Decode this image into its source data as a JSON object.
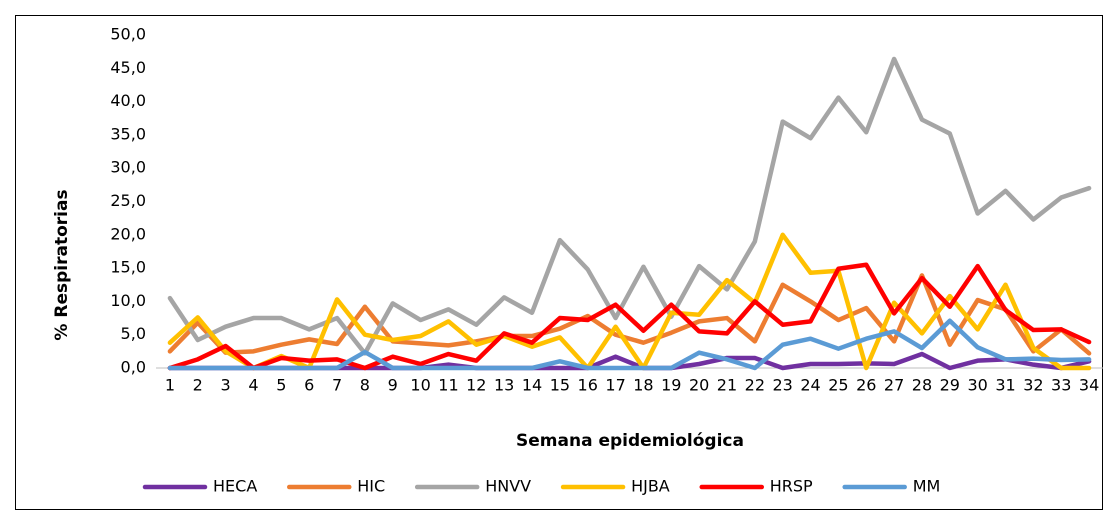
{
  "chart_data": {
    "type": "line",
    "y_label": "% Respiratorias",
    "x_label": "Semana epidemiológica",
    "categories": [
      "1",
      "2",
      "3",
      "4",
      "5",
      "6",
      "7",
      "8",
      "9",
      "10",
      "11",
      "12",
      "13",
      "14",
      "15",
      "16",
      "17",
      "18",
      "19",
      "20",
      "21",
      "22",
      "23",
      "24",
      "25",
      "26",
      "27",
      "28",
      "29",
      "30",
      "31",
      "32",
      "33",
      "34"
    ],
    "ylim": [
      0,
      50
    ],
    "yticks": [
      {
        "value": 0,
        "label": "0,0"
      },
      {
        "value": 5,
        "label": "5,0"
      },
      {
        "value": 10,
        "label": "10,0"
      },
      {
        "value": 15,
        "label": "15,0"
      },
      {
        "value": 20,
        "label": "20,0"
      },
      {
        "value": 25,
        "label": "25,0"
      },
      {
        "value": 30,
        "label": "30,0"
      },
      {
        "value": 35,
        "label": "35,0"
      },
      {
        "value": 40,
        "label": "40,0"
      },
      {
        "value": 45,
        "label": "45,0"
      },
      {
        "value": 50,
        "label": "50,0"
      }
    ],
    "grid": false,
    "series": [
      {
        "name": "HECA",
        "color": "#7030a0",
        "values": [
          0,
          0,
          0,
          0,
          0,
          0,
          0,
          0,
          0,
          0,
          0.5,
          0,
          0,
          0,
          0,
          0,
          1.7,
          0,
          0,
          0.6,
          1.5,
          1.5,
          0,
          0.6,
          0.6,
          0.7,
          0.6,
          2.1,
          0,
          1.1,
          1.3,
          0.5,
          0,
          1.0
        ]
      },
      {
        "name": "HIC",
        "color": "#ed7d31",
        "values": [
          2.5,
          6.8,
          2.3,
          2.5,
          3.5,
          4.3,
          3.6,
          9.2,
          4.0,
          3.7,
          3.4,
          4.0,
          4.8,
          4.8,
          5.9,
          7.8,
          5.0,
          3.8,
          5.3,
          7.0,
          7.5,
          4.0,
          12.5,
          10.0,
          7.2,
          9.0,
          4.0,
          13.9,
          3.5,
          10.2,
          8.8,
          2.5,
          5.8,
          2.2
        ]
      },
      {
        "name": "HNVV",
        "color": "#a5a5a5",
        "values": [
          10.5,
          4.2,
          6.2,
          7.5,
          7.5,
          5.8,
          7.5,
          2.2,
          9.7,
          7.2,
          8.8,
          6.5,
          10.6,
          8.3,
          19.2,
          14.8,
          7.5,
          15.2,
          7.7,
          15.3,
          11.8,
          19.0,
          37.0,
          34.5,
          40.6,
          35.4,
          46.4,
          37.3,
          35.2,
          23.2,
          26.6,
          22.3,
          25.6,
          27.0
        ]
      },
      {
        "name": "HJBA",
        "color": "#ffc000",
        "values": [
          3.8,
          7.6,
          2.5,
          0,
          1.8,
          0,
          10.3,
          5.0,
          4.2,
          4.8,
          7.0,
          3.5,
          4.8,
          3.2,
          4.6,
          0,
          6.2,
          0,
          8.3,
          8.0,
          13.2,
          9.8,
          20.0,
          14.3,
          14.6,
          0,
          9.8,
          5.2,
          10.8,
          5.8,
          12.5,
          3.0,
          0,
          0
        ]
      },
      {
        "name": "HRSP",
        "color": "#ff0000",
        "values": [
          0,
          1.3,
          3.3,
          0,
          1.5,
          1.1,
          1.3,
          0,
          1.7,
          0.6,
          2.1,
          1.1,
          5.2,
          3.8,
          7.5,
          7.2,
          9.5,
          5.6,
          9.5,
          5.5,
          5.2,
          10.0,
          6.5,
          7.0,
          14.9,
          15.5,
          8.2,
          13.5,
          9.2,
          15.3,
          8.7,
          5.7,
          5.8,
          3.9
        ]
      },
      {
        "name": "MM",
        "color": "#5b9bd5",
        "values": [
          0,
          0,
          0,
          0,
          0,
          0,
          0,
          2.4,
          0,
          0,
          0,
          0,
          0,
          0,
          1.0,
          0,
          0,
          0,
          0,
          2.3,
          1.3,
          0,
          3.5,
          4.4,
          2.9,
          4.4,
          5.5,
          3.0,
          7.1,
          3.1,
          1.3,
          1.4,
          1.2,
          1.3
        ]
      }
    ]
  }
}
